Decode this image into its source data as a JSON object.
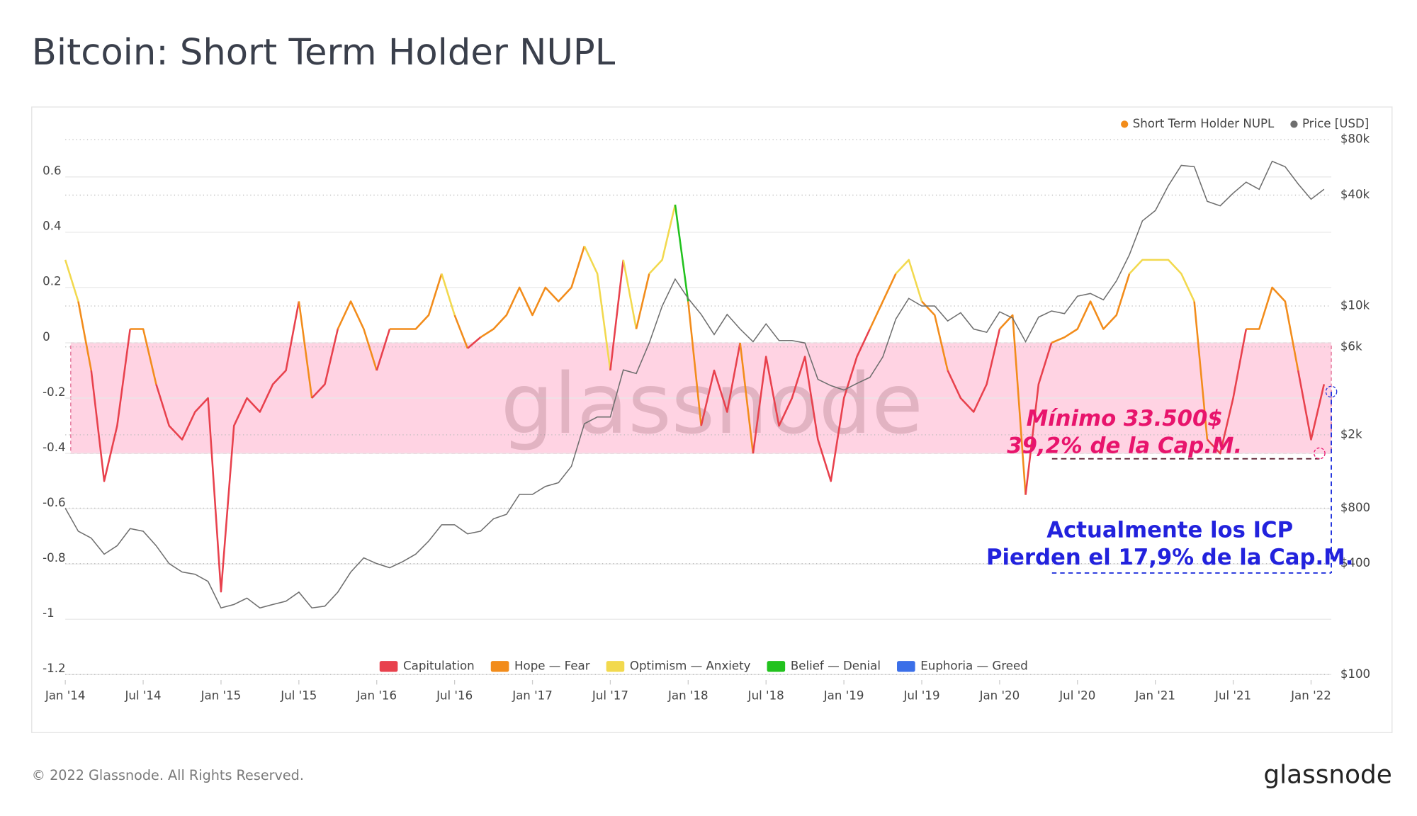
{
  "chart_data": {
    "type": "line",
    "title": "Bitcoin: Short Term Holder NUPL",
    "watermark": "glassnode",
    "footer": "© 2022 Glassnode. All Rights Reserved.",
    "logo": "glassnode",
    "x": [
      "2014-01",
      "2014-02",
      "2014-03",
      "2014-04",
      "2014-05",
      "2014-06",
      "2014-07",
      "2014-08",
      "2014-09",
      "2014-10",
      "2014-11",
      "2014-12",
      "2015-01",
      "2015-02",
      "2015-03",
      "2015-04",
      "2015-05",
      "2015-06",
      "2015-07",
      "2015-08",
      "2015-09",
      "2015-10",
      "2015-11",
      "2015-12",
      "2016-01",
      "2016-02",
      "2016-03",
      "2016-04",
      "2016-05",
      "2016-06",
      "2016-07",
      "2016-08",
      "2016-09",
      "2016-10",
      "2016-11",
      "2016-12",
      "2017-01",
      "2017-02",
      "2017-03",
      "2017-04",
      "2017-05",
      "2017-06",
      "2017-07",
      "2017-08",
      "2017-09",
      "2017-10",
      "2017-11",
      "2017-12",
      "2018-01",
      "2018-02",
      "2018-03",
      "2018-04",
      "2018-05",
      "2018-06",
      "2018-07",
      "2018-08",
      "2018-09",
      "2018-10",
      "2018-11",
      "2018-12",
      "2019-01",
      "2019-02",
      "2019-03",
      "2019-04",
      "2019-05",
      "2019-06",
      "2019-07",
      "2019-08",
      "2019-09",
      "2019-10",
      "2019-11",
      "2019-12",
      "2020-01",
      "2020-02",
      "2020-03",
      "2020-04",
      "2020-05",
      "2020-06",
      "2020-07",
      "2020-08",
      "2020-09",
      "2020-10",
      "2020-11",
      "2020-12",
      "2021-01",
      "2021-02",
      "2021-03",
      "2021-04",
      "2021-05",
      "2021-06",
      "2021-07",
      "2021-08",
      "2021-09",
      "2021-10",
      "2021-11",
      "2021-12",
      "2022-01",
      "2022-02"
    ],
    "series": [
      {
        "name": "Short Term Holder NUPL",
        "color": "#f28c1b",
        "values": [
          0.3,
          0.15,
          -0.1,
          -0.5,
          -0.3,
          0.05,
          0.05,
          -0.15,
          -0.3,
          -0.35,
          -0.25,
          -0.2,
          -0.9,
          -0.3,
          -0.2,
          -0.25,
          -0.15,
          -0.1,
          0.15,
          -0.2,
          -0.15,
          0.05,
          0.15,
          0.05,
          -0.1,
          0.05,
          0.05,
          0.05,
          0.1,
          0.25,
          0.1,
          -0.02,
          0.02,
          0.05,
          0.1,
          0.2,
          0.1,
          0.2,
          0.15,
          0.2,
          0.35,
          0.25,
          -0.1,
          0.3,
          0.05,
          0.25,
          0.3,
          0.5,
          0.15,
          -0.3,
          -0.1,
          -0.25,
          0,
          -0.4,
          -0.05,
          -0.3,
          -0.2,
          -0.05,
          -0.35,
          -0.5,
          -0.2,
          -0.05,
          0.05,
          0.15,
          0.25,
          0.3,
          0.15,
          0.1,
          -0.1,
          -0.2,
          -0.25,
          -0.15,
          0.05,
          0.1,
          -0.55,
          -0.15,
          0,
          0.02,
          0.05,
          0.15,
          0.05,
          0.1,
          0.25,
          0.3,
          0.3,
          0.3,
          0.25,
          0.15,
          -0.35,
          -0.4,
          -0.2,
          0.05,
          0.05,
          0.2,
          0.15,
          -0.1,
          -0.35,
          -0.15
        ]
      },
      {
        "name": "Price [USD]",
        "color": "#6e6e6e",
        "axis": "y2",
        "values": [
          800,
          600,
          550,
          450,
          500,
          620,
          600,
          500,
          400,
          360,
          350,
          320,
          230,
          240,
          260,
          230,
          240,
          250,
          280,
          230,
          235,
          280,
          360,
          430,
          400,
          380,
          410,
          450,
          530,
          650,
          650,
          580,
          600,
          700,
          740,
          950,
          950,
          1050,
          1100,
          1350,
          2300,
          2500,
          2500,
          4500,
          4300,
          6300,
          10000,
          14000,
          11000,
          9000,
          7000,
          9000,
          7500,
          6400,
          8000,
          6500,
          6500,
          6300,
          4000,
          3700,
          3500,
          3800,
          4100,
          5300,
          8500,
          11000,
          10000,
          10000,
          8300,
          9200,
          7500,
          7200,
          9300,
          8600,
          6400,
          8700,
          9400,
          9100,
          11300,
          11700,
          10800,
          13700,
          19000,
          29000,
          33000,
          45000,
          58000,
          57000,
          37000,
          35000,
          41000,
          47000,
          43000,
          61000,
          57000,
          46000,
          38000,
          43000
        ]
      }
    ],
    "zones": [
      {
        "name": "Capitulation",
        "color": "#e8414d",
        "upper": 0
      },
      {
        "name": "Hope — Fear",
        "color": "#f28c1b",
        "upper": 0.25
      },
      {
        "name": "Optimism — Anxiety",
        "color": "#f2d94e",
        "upper": 0.5
      },
      {
        "name": "Belief — Denial",
        "color": "#22c21e",
        "upper": 0.75
      },
      {
        "name": "Euphoria — Greed",
        "color": "#3b6fe8",
        "upper": null
      }
    ],
    "highlight": {
      "from": 0,
      "to": -0.4
    },
    "annotations": [
      "Mínimo 33.500$",
      "39,2% de la Cap.M.",
      "Actualmente los ICP",
      "Pierden el 17,9% de la Cap.M."
    ],
    "xlim": [
      "2014-01",
      "2022-02"
    ],
    "xticks": [
      {
        "value": "2014-01",
        "label": "Jan '14"
      },
      {
        "value": "2014-07",
        "label": "Jul '14"
      },
      {
        "value": "2015-01",
        "label": "Jan '15"
      },
      {
        "value": "2015-07",
        "label": "Jul '15"
      },
      {
        "value": "2016-01",
        "label": "Jan '16"
      },
      {
        "value": "2016-07",
        "label": "Jul '16"
      },
      {
        "value": "2017-01",
        "label": "Jan '17"
      },
      {
        "value": "2017-07",
        "label": "Jul '17"
      },
      {
        "value": "2018-01",
        "label": "Jan '18"
      },
      {
        "value": "2018-07",
        "label": "Jul '18"
      },
      {
        "value": "2019-01",
        "label": "Jan '19"
      },
      {
        "value": "2019-07",
        "label": "Jul '19"
      },
      {
        "value": "2020-01",
        "label": "Jan '20"
      },
      {
        "value": "2020-07",
        "label": "Jul '20"
      },
      {
        "value": "2021-01",
        "label": "Jan '21"
      },
      {
        "value": "2021-07",
        "label": "Jul '21"
      },
      {
        "value": "2022-01",
        "label": "Jan '22"
      }
    ],
    "ylim": [
      -1.2,
      0.735
    ],
    "yticks": [
      0.6,
      0.4,
      0.2,
      0,
      -0.2,
      -0.4,
      -0.6,
      -0.8,
      -1,
      -1.2
    ],
    "y2lim": [
      100,
      80000
    ],
    "y2log": true,
    "y2ticks": [
      {
        "value": 80000,
        "label": "$80k"
      },
      {
        "value": 40000,
        "label": "$40k"
      },
      {
        "value": 10000,
        "label": "$10k"
      },
      {
        "value": 6000,
        "label": "$6k"
      },
      {
        "value": 2000,
        "label": "$2k"
      },
      {
        "value": 800,
        "label": "$800"
      },
      {
        "value": 400,
        "label": "$400"
      },
      {
        "value": 100,
        "label": "$100"
      }
    ],
    "grid": true,
    "legend": "top-right"
  }
}
